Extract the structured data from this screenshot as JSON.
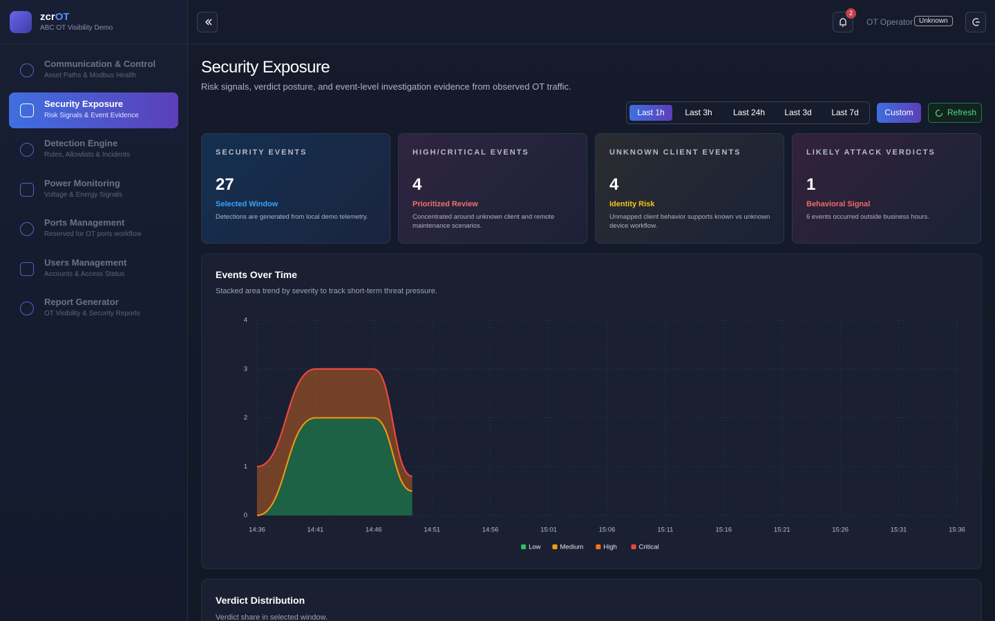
{
  "brand": {
    "name": "zcr",
    "accent": "OT",
    "subtitle": "ABC OT Visibility Demo"
  },
  "nav": [
    {
      "title": "Communication & Control",
      "subtitle": "Asset Paths & Modbus Health",
      "active": false
    },
    {
      "title": "Security Exposure",
      "subtitle": "Risk Signals & Event Evidence",
      "active": true
    },
    {
      "title": "Detection Engine",
      "subtitle": "Rules, Allowlists & Incidents",
      "active": false
    },
    {
      "title": "Power Monitoring",
      "subtitle": "Voltage & Energy Signals",
      "active": false
    },
    {
      "title": "Ports Management",
      "subtitle": "Reserved for OT ports workflow",
      "active": false
    },
    {
      "title": "Users Management",
      "subtitle": "Accounts & Access Status",
      "active": false
    },
    {
      "title": "Report Generator",
      "subtitle": "OT Visibility & Security Reports",
      "active": false
    }
  ],
  "header": {
    "notifications": 2,
    "user": "OT Operator",
    "role": "Unknown"
  },
  "page": {
    "title": "Security Exposure",
    "subtitle": "Risk signals, verdict posture, and event-level investigation evidence from observed OT traffic."
  },
  "time_ranges": [
    {
      "label": "Last 1h",
      "active": true
    },
    {
      "label": "Last 3h",
      "active": false
    },
    {
      "label": "Last 24h",
      "active": false
    },
    {
      "label": "Last 3d",
      "active": false
    },
    {
      "label": "Last 7d",
      "active": false
    }
  ],
  "custom": "Custom",
  "refresh": "Refresh",
  "kpis": [
    {
      "label": "SECURITY EVENTS",
      "value": 27,
      "tag": "Selected Window",
      "note": "Detections are generated from local demo telemetry.",
      "color": "#3ba3ff"
    },
    {
      "label": "HIGH/CRITICAL EVENTS",
      "value": 4,
      "tag": "Prioritized Review",
      "note": "Concentrated around unknown client and remote maintenance scenarios.",
      "color": "#f2706d"
    },
    {
      "label": "UNKNOWN CLIENT EVENTS",
      "value": 4,
      "tag": "Identity Risk",
      "note": "Unmapped client behavior supports known vs unknown device workflow.",
      "color": "#f5c518"
    },
    {
      "label": "LIKELY ATTACK VERDICTS",
      "value": 1,
      "tag": "Behavioral Signal",
      "note": "6 events occurred outside business hours.",
      "color": "#f06a6a"
    }
  ],
  "chart_data": {
    "type": "area",
    "stacked": true,
    "title": "Events Over Time",
    "subtitle": "Stacked area trend by severity to track short-term threat pressure.",
    "x": [
      876,
      881,
      886,
      889.3
    ],
    "xlim": [
      876,
      936
    ],
    "xticks": [
      {
        "value": 876,
        "label": "14:36"
      },
      {
        "value": 881,
        "label": "14:41"
      },
      {
        "value": 886,
        "label": "14:46"
      },
      {
        "value": 891,
        "label": "14:51"
      },
      {
        "value": 896,
        "label": "14:56"
      },
      {
        "value": 901,
        "label": "15:01"
      },
      {
        "value": 906,
        "label": "15:06"
      },
      {
        "value": 911,
        "label": "15:11"
      },
      {
        "value": 916,
        "label": "15:16"
      },
      {
        "value": 921,
        "label": "15:21"
      },
      {
        "value": 926,
        "label": "15:26"
      },
      {
        "value": 931,
        "label": "15:31"
      },
      {
        "value": 936,
        "label": "15:36"
      }
    ],
    "ylim": [
      0,
      4
    ],
    "yticks": [
      0,
      1,
      2,
      3,
      4
    ],
    "grid": true,
    "legend": "bottom",
    "series": [
      {
        "name": "Low",
        "color": "#22c55e",
        "values": [
          0,
          2,
          2,
          0.5
        ]
      },
      {
        "name": "Medium",
        "color": "#f59e0b",
        "values": [
          0,
          0,
          0,
          0
        ]
      },
      {
        "name": "High",
        "color": "#f97316",
        "values": [
          1,
          1,
          1,
          0.3
        ]
      },
      {
        "name": "Critical",
        "color": "#ef4444",
        "values": [
          0,
          0,
          0,
          0
        ]
      }
    ]
  },
  "verdict": {
    "title": "Verdict Distribution",
    "subtitle": "Verdict share in selected window."
  }
}
